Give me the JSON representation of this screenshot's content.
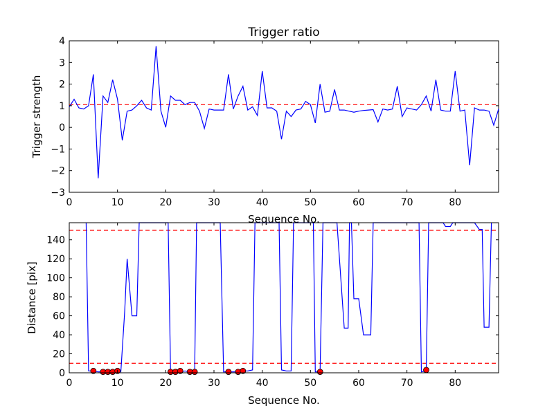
{
  "chart_data": [
    {
      "type": "line",
      "title": "Trigger ratio",
      "xlabel": "Sequence No.",
      "ylabel": "Trigger strength",
      "xlim": [
        0,
        89
      ],
      "ylim": [
        -3,
        4
      ],
      "xticks": [
        "0",
        "10",
        "20",
        "30",
        "40",
        "50",
        "60",
        "70",
        "80"
      ],
      "yticks": [
        "−3",
        "−2",
        "−1",
        "0",
        "1",
        "2",
        "3",
        "4"
      ],
      "line_color": "#0000ff",
      "threshold_color": "#ff0000",
      "thresholds": [
        1.05
      ],
      "x": [
        0,
        1,
        2,
        3,
        4,
        5,
        6,
        7,
        8,
        9,
        10,
        11,
        12,
        13,
        14,
        15,
        16,
        17,
        18,
        19,
        20,
        21,
        22,
        23,
        24,
        25,
        26,
        27,
        28,
        29,
        30,
        31,
        32,
        33,
        34,
        35,
        36,
        37,
        38,
        39,
        40,
        41,
        42,
        43,
        44,
        45,
        46,
        47,
        48,
        49,
        50,
        51,
        52,
        53,
        54,
        55,
        56,
        57,
        58,
        59,
        60,
        61,
        62,
        63,
        64,
        65,
        66,
        67,
        68,
        69,
        70,
        71,
        72,
        73,
        74,
        75,
        76,
        77,
        78,
        79,
        80,
        81,
        82,
        83,
        84,
        85,
        86,
        87,
        88,
        89
      ],
      "values": [
        0.95,
        1.3,
        0.9,
        0.85,
        1.0,
        2.45,
        -2.35,
        1.45,
        1.15,
        2.2,
        1.3,
        -0.6,
        0.75,
        0.8,
        1.0,
        1.25,
        0.9,
        0.8,
        3.75,
        0.75,
        0.0,
        1.45,
        1.25,
        1.25,
        1.05,
        1.15,
        1.15,
        0.75,
        -0.05,
        0.85,
        0.8,
        0.8,
        0.8,
        2.45,
        0.85,
        1.45,
        1.9,
        0.8,
        0.95,
        0.55,
        2.6,
        0.9,
        0.9,
        0.75,
        -0.55,
        0.75,
        0.5,
        0.8,
        0.85,
        1.2,
        1.05,
        0.2,
        2.0,
        0.7,
        0.75,
        1.75,
        0.8,
        0.8,
        0.75,
        0.7,
        0.75,
        0.78,
        0.8,
        0.82,
        0.25,
        0.85,
        0.8,
        0.85,
        1.9,
        0.5,
        0.9,
        0.85,
        0.8,
        1.05,
        1.45,
        0.75,
        2.2,
        0.8,
        0.75,
        0.75,
        2.6,
        0.75,
        0.8,
        -1.75,
        0.9,
        0.8,
        0.8,
        0.75,
        0.1,
        0.85
      ]
    },
    {
      "type": "line",
      "title": "",
      "xlabel": "Sequence No.",
      "ylabel": "Distance [pix]",
      "xlim": [
        0,
        89
      ],
      "ylim": [
        0,
        158
      ],
      "xticks": [
        "0",
        "10",
        "20",
        "30",
        "40",
        "50",
        "60",
        "70",
        "80"
      ],
      "yticks": [
        "0",
        "20",
        "40",
        "60",
        "80",
        "100",
        "120",
        "140"
      ],
      "line_color": "#0000ff",
      "threshold_color": "#ff0000",
      "marker_color": "#ff0000",
      "thresholds": [
        10,
        150
      ],
      "x": [
        3.5,
        4,
        5,
        6,
        7,
        8,
        9,
        10,
        10.7,
        11.5,
        12,
        12.5,
        13,
        13.5,
        14,
        14.5,
        20.5,
        21,
        22,
        23,
        24,
        25,
        26,
        26.4,
        31.3,
        32,
        33,
        34,
        35,
        36,
        37,
        38,
        38.5,
        43.5,
        44,
        45,
        46,
        46.5,
        50.6,
        51,
        52,
        52.6,
        55.5,
        57,
        57.8,
        58.1,
        58.5,
        59,
        60,
        61,
        62,
        62.5,
        63,
        63.5,
        72.5,
        73,
        74,
        74.5,
        77.5,
        78,
        79,
        79.5,
        84,
        85,
        85.6,
        86,
        87,
        87.5
      ],
      "values": [
        158,
        2,
        2,
        1,
        1,
        1,
        1,
        2,
        1,
        65,
        120,
        90,
        60,
        60,
        60,
        158,
        158,
        1,
        1,
        1,
        2,
        1,
        1,
        158,
        158,
        1,
        1,
        1,
        1,
        2,
        2,
        3,
        158,
        158,
        3,
        2,
        2,
        158,
        158,
        1,
        1,
        158,
        158,
        47,
        47,
        158,
        158,
        78,
        78,
        40,
        40,
        40,
        158,
        158,
        158,
        1,
        2,
        158,
        158,
        154,
        154,
        158,
        158,
        151,
        151,
        48,
        48,
        158
      ],
      "markers": {
        "x": [
          5,
          7,
          8,
          9,
          10,
          21,
          22,
          23,
          25,
          26,
          33,
          35,
          36,
          52,
          74
        ],
        "values": [
          2,
          1,
          1,
          1,
          2,
          1,
          1,
          2,
          1,
          1,
          1,
          1,
          2,
          1,
          3
        ]
      }
    }
  ]
}
